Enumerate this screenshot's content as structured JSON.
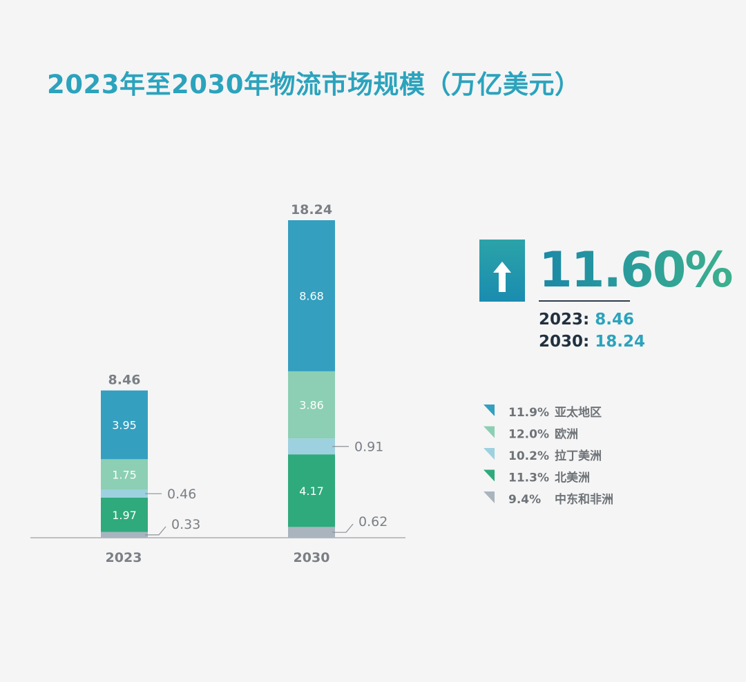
{
  "title": "2023年至2030年物流市场规模（万亿美元）",
  "growth": {
    "rate": "11.60%",
    "icon": "up-arrow-icon",
    "lines": [
      {
        "year": "2023:",
        "value": "8.46"
      },
      {
        "year": "2030:",
        "value": "18.24"
      }
    ]
  },
  "chart_data": {
    "type": "bar",
    "stacked": true,
    "title": "2023年至2030年物流市场规模（万亿美元）",
    "categories": [
      "2023",
      "2030"
    ],
    "totals": [
      "8.46",
      "18.24"
    ],
    "series": [
      {
        "name": "中东和非洲",
        "cagr": "9.4%",
        "color": "#a9b4be",
        "values": [
          0.33,
          0.62
        ],
        "labels": [
          "0.33",
          "0.62"
        ],
        "external": true
      },
      {
        "name": "北美洲",
        "cagr": "11.3%",
        "color": "#2faa7d",
        "values": [
          1.97,
          4.17
        ],
        "labels": [
          "1.97",
          "4.17"
        ],
        "external": false
      },
      {
        "name": "拉丁美洲",
        "cagr": "10.2%",
        "color": "#9dd1df",
        "values": [
          0.46,
          0.91
        ],
        "labels": [
          "0.46",
          "0.91"
        ],
        "external": true
      },
      {
        "name": "欧洲",
        "cagr": "12.0%",
        "color": "#8ccfb4",
        "values": [
          1.75,
          3.86
        ],
        "labels": [
          "1.75",
          "3.86"
        ],
        "external": false
      },
      {
        "name": "亚太地区",
        "cagr": "11.9%",
        "color": "#349fbf",
        "values": [
          3.95,
          8.68
        ],
        "labels": [
          "3.95",
          "8.68"
        ],
        "external": false
      }
    ],
    "legend_order": [
      "亚太地区",
      "欧洲",
      "拉丁美洲",
      "北美洲",
      "中东和非洲"
    ],
    "ylim": [
      0,
      18.24
    ],
    "grid": false,
    "legend_position": "right"
  }
}
